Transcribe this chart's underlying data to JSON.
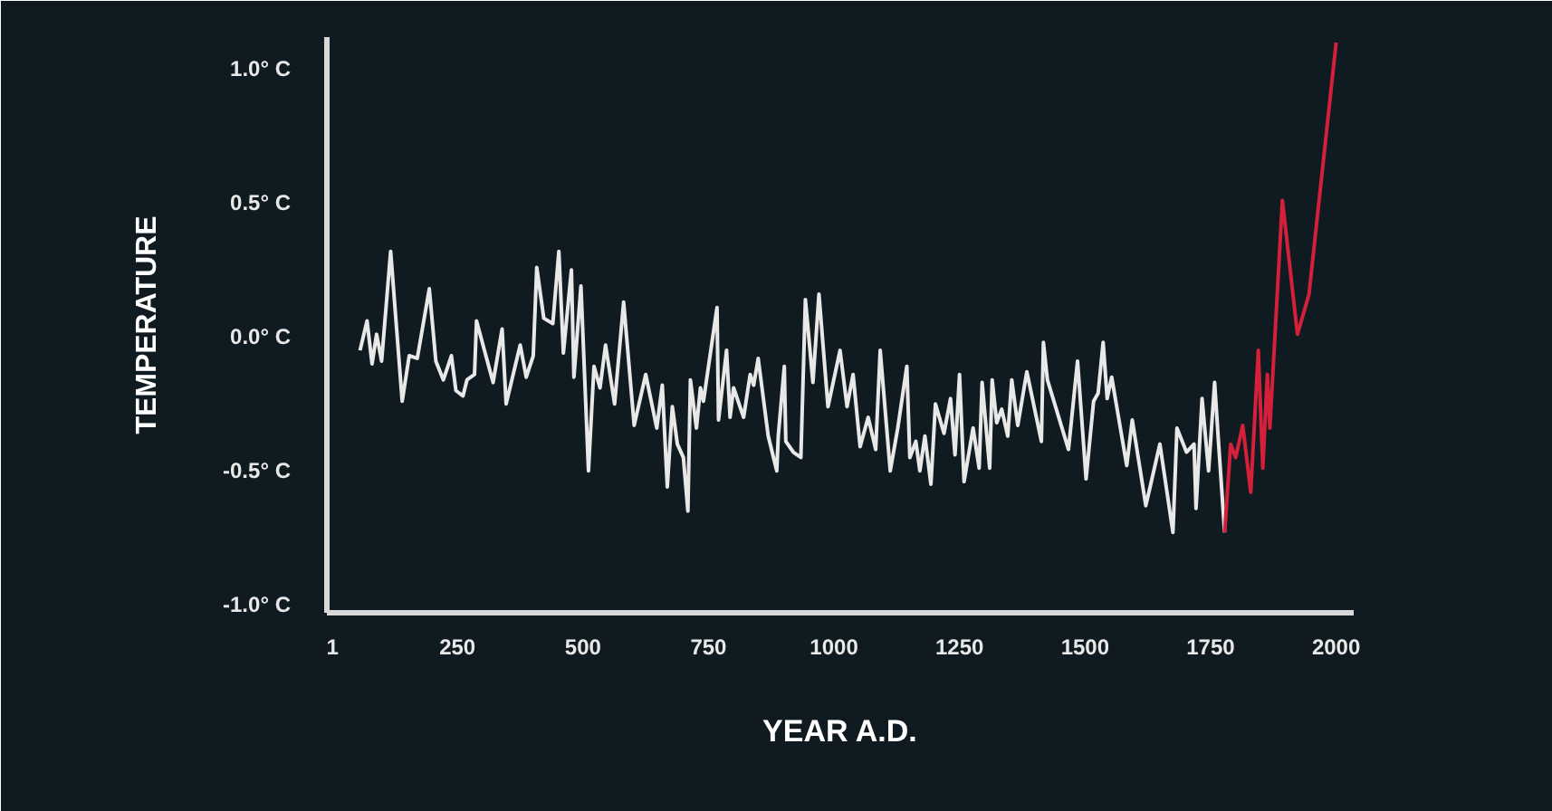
{
  "chart_data": {
    "type": "line",
    "xlabel": "YEAR A.D.",
    "ylabel": "TEMPERATURE",
    "xlim": [
      -10,
      2035
    ],
    "ylim": [
      -1.03,
      1.12
    ],
    "xticks": [
      1,
      250,
      500,
      750,
      1000,
      1250,
      1500,
      1750,
      2000
    ],
    "yticks": [
      {
        "value": -1.0,
        "label": "-1.0° C"
      },
      {
        "value": -0.5,
        "label": "-0.5° C"
      },
      {
        "value": 0.0,
        "label": "0.0° C"
      },
      {
        "value": 0.5,
        "label": "0.5° C"
      },
      {
        "value": 1.0,
        "label": "1.0° C"
      }
    ],
    "grid": false,
    "marker": "none",
    "line_style": "solid",
    "series": [
      {
        "color": "#e8e8e8",
        "x": [
          56,
          70,
          80,
          89,
          99,
          117,
          140,
          154,
          170,
          194,
          207,
          222,
          238,
          247,
          261,
          269,
          284,
          288,
          321,
          339,
          347,
          375,
          387,
          401,
          408,
          422,
          440,
          452,
          461,
          477,
          482,
          496,
          511,
          522,
          534,
          545,
          563,
          581,
          602,
          625,
          647,
          658,
          668,
          678,
          688,
          700,
          709,
          714,
          726,
          734,
          740,
          750,
          767,
          770,
          786,
          793,
          800,
          820,
          833,
          840,
          849,
          869,
          886,
          889,
          901,
          904,
          919,
          934,
          943,
          958,
          970,
          988,
          1012,
          1026,
          1038,
          1052,
          1068,
          1083,
          1092,
          1112,
          1127,
          1145,
          1151,
          1163,
          1171,
          1181,
          1193,
          1202,
          1219,
          1232,
          1241,
          1250,
          1259,
          1277,
          1289,
          1295,
          1310,
          1315,
          1324,
          1334,
          1346,
          1354,
          1366,
          1384,
          1413,
          1417,
          1425,
          1467,
          1485,
          1502,
          1517,
          1526,
          1536,
          1544,
          1553,
          1583,
          1594,
          1621,
          1649,
          1675,
          1683,
          1702,
          1717,
          1721,
          1733,
          1746,
          1758,
          1766,
          1778
        ],
        "values": [
          -0.05,
          0.06,
          -0.1,
          0.01,
          -0.09,
          0.32,
          -0.24,
          -0.07,
          -0.08,
          0.18,
          -0.09,
          -0.16,
          -0.07,
          -0.2,
          -0.22,
          -0.16,
          -0.14,
          0.06,
          -0.17,
          0.03,
          -0.25,
          -0.03,
          -0.15,
          -0.07,
          0.26,
          0.07,
          0.05,
          0.32,
          -0.06,
          0.25,
          -0.15,
          0.19,
          -0.5,
          -0.11,
          -0.19,
          -0.03,
          -0.25,
          0.13,
          -0.33,
          -0.14,
          -0.34,
          -0.18,
          -0.56,
          -0.26,
          -0.4,
          -0.45,
          -0.65,
          -0.16,
          -0.34,
          -0.19,
          -0.24,
          -0.11,
          0.11,
          -0.31,
          -0.05,
          -0.3,
          -0.19,
          -0.3,
          -0.14,
          -0.18,
          -0.08,
          -0.37,
          -0.5,
          -0.37,
          -0.11,
          -0.39,
          -0.43,
          -0.45,
          0.14,
          -0.17,
          0.16,
          -0.26,
          -0.05,
          -0.26,
          -0.14,
          -0.41,
          -0.3,
          -0.42,
          -0.05,
          -0.5,
          -0.34,
          -0.11,
          -0.45,
          -0.39,
          -0.5,
          -0.37,
          -0.55,
          -0.25,
          -0.36,
          -0.23,
          -0.44,
          -0.14,
          -0.54,
          -0.34,
          -0.49,
          -0.17,
          -0.49,
          -0.16,
          -0.32,
          -0.27,
          -0.37,
          -0.16,
          -0.33,
          -0.13,
          -0.39,
          -0.02,
          -0.16,
          -0.42,
          -0.09,
          -0.53,
          -0.24,
          -0.21,
          -0.02,
          -0.23,
          -0.15,
          -0.48,
          -0.31,
          -0.63,
          -0.4,
          -0.73,
          -0.34,
          -0.43,
          -0.4,
          -0.64,
          -0.23,
          -0.5,
          -0.17,
          -0.4,
          -0.73
        ]
      },
      {
        "color": "#d4203a",
        "x": [
          1778,
          1790,
          1800,
          1814,
          1830,
          1845,
          1854,
          1863,
          1868,
          1893,
          1923,
          1946,
          2000
        ],
        "values": [
          -0.73,
          -0.4,
          -0.45,
          -0.33,
          -0.58,
          -0.05,
          -0.49,
          -0.14,
          -0.34,
          0.51,
          0.01,
          0.16,
          1.1
        ]
      }
    ]
  }
}
